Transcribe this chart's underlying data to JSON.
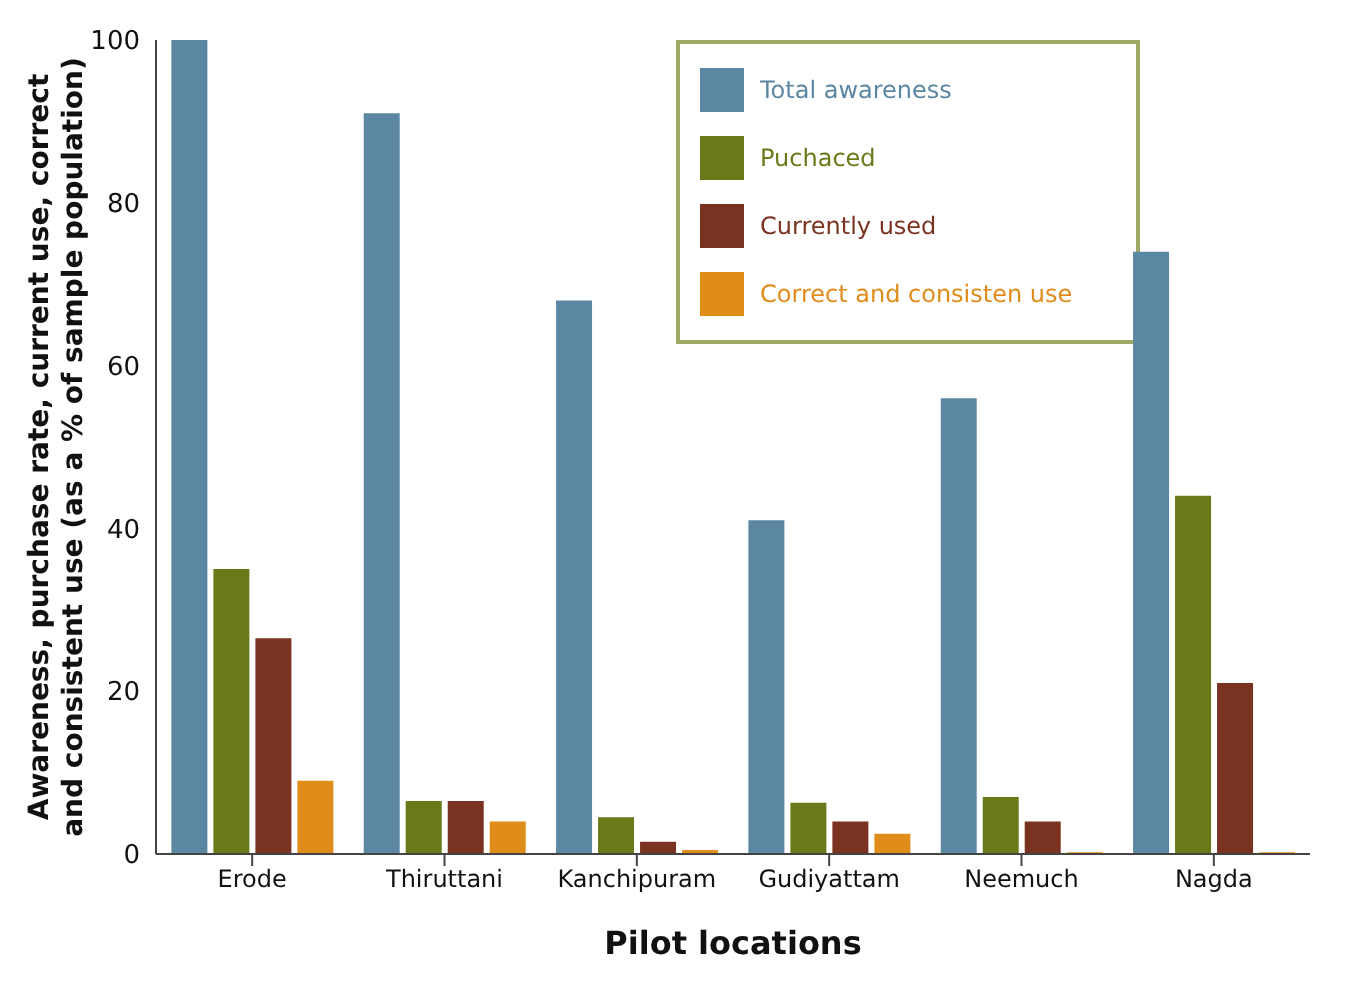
{
  "chart_data": {
    "type": "bar",
    "xlabel": "Pilot locations",
    "ylabel": "Awareness, purchase rate, current use, correct and consistent use (as a % of sample population)",
    "categories": [
      "Erode",
      "Thiruttani",
      "Kanchipuram",
      "Gudiyattam",
      "Neemuch",
      "Nagda"
    ],
    "series": [
      {
        "name": "Total awareness",
        "color": "#5b87a2",
        "values": [
          100,
          91,
          68,
          41,
          56,
          74
        ]
      },
      {
        "name": "Puchaced",
        "color": "#687a1a",
        "values": [
          35,
          6.5,
          4.5,
          6.3,
          7,
          44
        ]
      },
      {
        "name": "Currently used",
        "color": "#7a3320",
        "values": [
          26.5,
          6.5,
          1.5,
          4,
          4,
          21
        ]
      },
      {
        "name": "Correct and consisten use",
        "color": "#e08c1a",
        "values": [
          9,
          4,
          0.5,
          2.5,
          0.2,
          0.2
        ]
      }
    ],
    "ylim": [
      0,
      100
    ],
    "yticks": [
      0,
      20,
      40,
      60,
      80,
      100
    ],
    "grid": false,
    "legend": "top right"
  }
}
